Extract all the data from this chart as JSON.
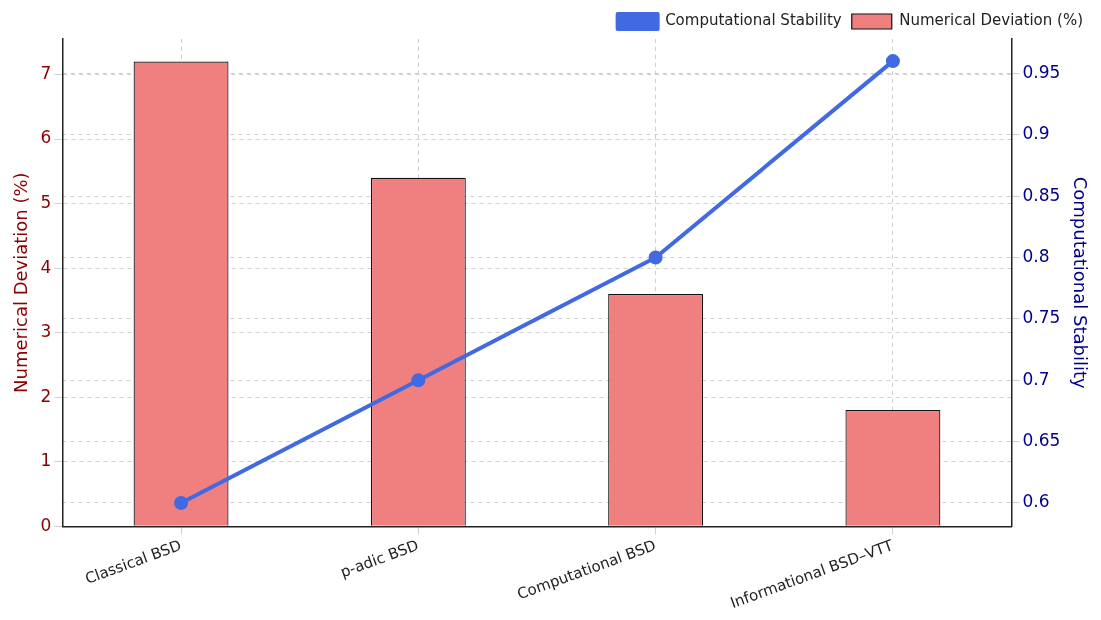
{
  "chart_data": {
    "type": "bar",
    "categories": [
      "Classical BSD",
      "p-adic BSD",
      "Computational BSD",
      "Informational BSD–VTT"
    ],
    "ylabel": "Numerical Deviation (%)",
    "y2label": "Computational Stability",
    "ylim": [
      0,
      7.55
    ],
    "yticks": [
      0,
      1,
      2,
      3,
      4,
      5,
      6,
      7
    ],
    "y2lim": [
      0.581,
      0.978
    ],
    "y2ticks": [
      0.6,
      0.65,
      0.7,
      0.75,
      0.8,
      0.85,
      0.9,
      0.95
    ],
    "series": [
      {
        "name": "Numerical Deviation (%)",
        "color": "#f08080",
        "values": [
          7.2,
          5.4,
          3.6,
          1.8
        ]
      },
      {
        "name": "Computational Stability",
        "type": "line",
        "axis": "y2",
        "color": "#4169e1",
        "values": [
          0.6,
          0.7,
          0.8,
          0.96
        ]
      }
    ],
    "marker": "circle",
    "grid": true,
    "legend": "top right"
  }
}
